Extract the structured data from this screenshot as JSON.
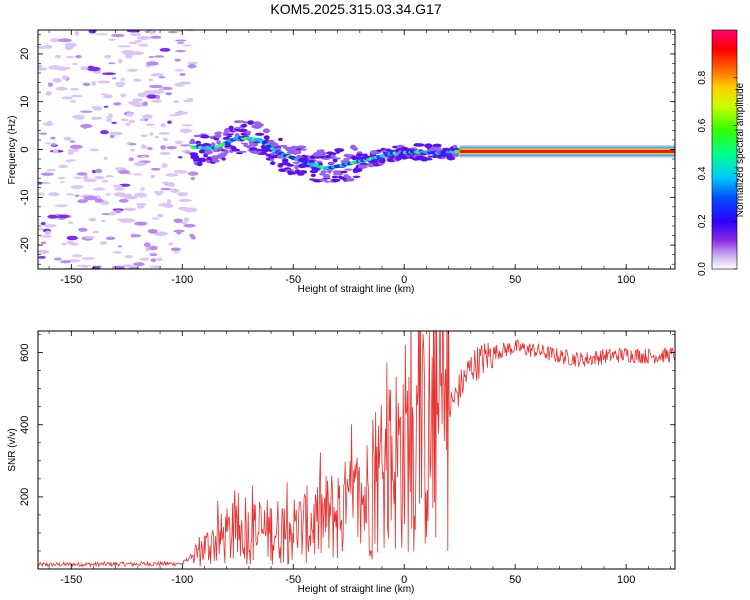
{
  "title": "KOM5.2025.315.03.34.G17",
  "chart_data": [
    {
      "type": "heatmap",
      "panel": "spectrogram",
      "xlabel": "Height of straight line (km)",
      "ylabel": "Frequency (Hz)",
      "xlim": [
        -165,
        122
      ],
      "ylim": [
        -25,
        25
      ],
      "xticks": [
        -150,
        -100,
        -50,
        0,
        50,
        100
      ],
      "yticks": [
        -20,
        -10,
        0,
        10,
        20
      ],
      "colorbar": {
        "label": "Normalized spectral amplitude",
        "range": [
          0,
          1
        ],
        "ticks": [
          "0.0",
          "0.2",
          "0.4",
          "0.6",
          "0.8"
        ],
        "colors": [
          "#ffffff",
          "#c9a6f0",
          "#8a2be2",
          "#3a00ff",
          "#0000ff",
          "#00c8ff",
          "#00ff80",
          "#40ff00",
          "#ffff00",
          "#ff8000",
          "#ff0000",
          "#ff0080"
        ]
      },
      "ridge": [
        {
          "x": -95,
          "y": 0.5
        },
        {
          "x": -85,
          "y": 0.3
        },
        {
          "x": -75,
          "y": 2.5
        },
        {
          "x": -65,
          "y": 2.0
        },
        {
          "x": -55,
          "y": -1.0
        },
        {
          "x": -45,
          "y": -2.5
        },
        {
          "x": -35,
          "y": -4.0
        },
        {
          "x": -25,
          "y": -3.0
        },
        {
          "x": -15,
          "y": -2.0
        },
        {
          "x": -5,
          "y": -0.8
        },
        {
          "x": 5,
          "y": -0.5
        },
        {
          "x": 15,
          "y": -0.7
        },
        {
          "x": 25,
          "y": -0.4
        },
        {
          "x": 122,
          "y": -0.4
        }
      ],
      "noise_region_km": [
        -165,
        -95
      ]
    },
    {
      "type": "line",
      "panel": "snr",
      "xlabel": "Height of straight line (km)",
      "ylabel": "SNR (v/v)",
      "xlim": [
        -165,
        122
      ],
      "ylim": [
        0,
        660
      ],
      "xticks": [
        -150,
        -100,
        -50,
        0,
        50,
        100
      ],
      "yticks": [
        200,
        400,
        600
      ],
      "series": [
        {
          "name": "SNR",
          "color": "#e8312f",
          "profile": [
            {
              "x": -165,
              "y": 12
            },
            {
              "x": -100,
              "y": 15
            },
            {
              "x": -95,
              "y": 40
            },
            {
              "x": -90,
              "y": 60
            },
            {
              "x": -80,
              "y": 90
            },
            {
              "x": -70,
              "y": 100
            },
            {
              "x": -60,
              "y": 105
            },
            {
              "x": -50,
              "y": 110
            },
            {
              "x": -40,
              "y": 130
            },
            {
              "x": -30,
              "y": 155
            },
            {
              "x": -20,
              "y": 175
            },
            {
              "x": -10,
              "y": 260
            },
            {
              "x": 0,
              "y": 340
            },
            {
              "x": 10,
              "y": 360
            },
            {
              "x": 20,
              "y": 440
            },
            {
              "x": 25,
              "y": 500
            },
            {
              "x": 30,
              "y": 560
            },
            {
              "x": 40,
              "y": 600
            },
            {
              "x": 50,
              "y": 615
            },
            {
              "x": 60,
              "y": 605
            },
            {
              "x": 70,
              "y": 590
            },
            {
              "x": 80,
              "y": 580
            },
            {
              "x": 90,
              "y": 590
            },
            {
              "x": 100,
              "y": 595
            },
            {
              "x": 110,
              "y": 590
            },
            {
              "x": 122,
              "y": 595
            }
          ]
        }
      ]
    }
  ]
}
